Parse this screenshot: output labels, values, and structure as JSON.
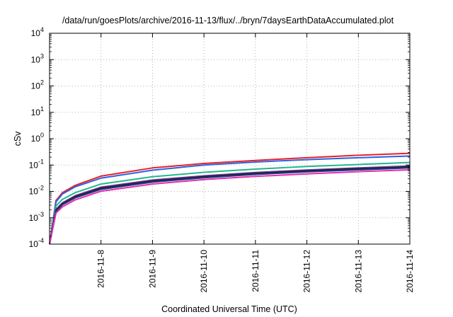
{
  "chart_data": {
    "type": "line",
    "title": "/data/run/goesPlots/archive/2016-11-13/flux/../bryn/7daysEarthDataAccumulated.plot",
    "xlabel": "Coordinated Universal Time (UTC)",
    "ylabel": "cSv",
    "yscale": "log",
    "ylim": [
      0.0001,
      10000
    ],
    "y_ticks": [
      {
        "base": "10",
        "exp": "-4",
        "value": 0.0001
      },
      {
        "base": "10",
        "exp": "-3",
        "value": 0.001
      },
      {
        "base": "10",
        "exp": "-2",
        "value": 0.01
      },
      {
        "base": "10",
        "exp": "-1",
        "value": 0.1
      },
      {
        "base": "10",
        "exp": "0",
        "value": 1
      },
      {
        "base": "10",
        "exp": "1",
        "value": 10
      },
      {
        "base": "10",
        "exp": "2",
        "value": 100
      },
      {
        "base": "10",
        "exp": "3",
        "value": 1000
      },
      {
        "base": "10",
        "exp": "4",
        "value": 10000
      }
    ],
    "xlim": [
      "2016-11-07T00:00",
      "2016-11-14T00:00"
    ],
    "x_ticks": [
      "2016-11-8",
      "2016-11-9",
      "2016-11-10",
      "2016-11-11",
      "2016-11-12",
      "2016-11-13",
      "2016-11-14"
    ],
    "grid": true,
    "legend": "none",
    "x": [
      "2016-11-07T00:00",
      "2016-11-07T03:00",
      "2016-11-07T06:00",
      "2016-11-07T12:00",
      "2016-11-08T00:00",
      "2016-11-09T00:00",
      "2016-11-10T00:00",
      "2016-11-11T00:00",
      "2016-11-12T00:00",
      "2016-11-13T00:00",
      "2016-11-14T00:00"
    ],
    "series": [
      {
        "color": "#e8202a",
        "values": [
          0.0001,
          0.0045,
          0.009,
          0.017,
          0.038,
          0.078,
          0.115,
          0.15,
          0.19,
          0.235,
          0.28
        ]
      },
      {
        "color": "#2a62e0",
        "values": [
          0.0001,
          0.004,
          0.008,
          0.015,
          0.032,
          0.064,
          0.1,
          0.13,
          0.16,
          0.19,
          0.22
        ]
      },
      {
        "color": "#20b890",
        "values": [
          0.0001,
          0.0028,
          0.005,
          0.009,
          0.019,
          0.036,
          0.053,
          0.07,
          0.088,
          0.105,
          0.125
        ]
      },
      {
        "color": "#7030a0",
        "values": [
          0.0001,
          0.0021,
          0.0037,
          0.0069,
          0.0145,
          0.027,
          0.039,
          0.052,
          0.065,
          0.078,
          0.092
        ]
      },
      {
        "color": "#202020",
        "values": [
          0.0001,
          0.0019,
          0.0034,
          0.0063,
          0.0132,
          0.0245,
          0.036,
          0.048,
          0.06,
          0.072,
          0.085
        ]
      },
      {
        "color": "#1f3a8a",
        "values": [
          0.0001,
          0.0017,
          0.0031,
          0.0057,
          0.012,
          0.0225,
          0.033,
          0.044,
          0.055,
          0.066,
          0.078
        ]
      },
      {
        "color": "#e52db0",
        "values": [
          0.0001,
          0.0015,
          0.0026,
          0.0048,
          0.0102,
          0.019,
          0.028,
          0.037,
          0.046,
          0.056,
          0.066
        ]
      }
    ]
  }
}
